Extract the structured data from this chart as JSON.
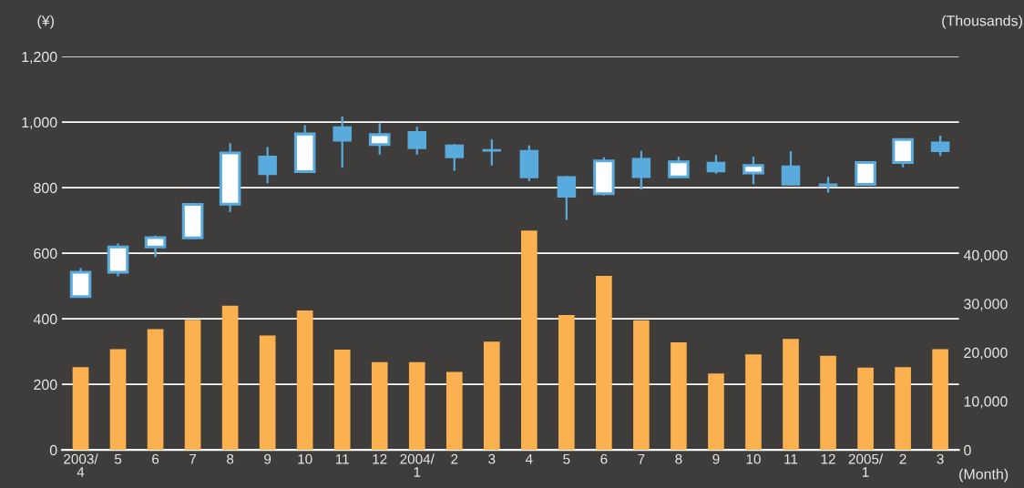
{
  "chart_data": {
    "type": "candlestick",
    "categories": [
      "2003/\n4",
      "5",
      "6",
      "7",
      "8",
      "9",
      "10",
      "11",
      "12",
      "2004/\n1",
      "2",
      "3",
      "4",
      "5",
      "6",
      "7",
      "8",
      "9",
      "10",
      "11",
      "12",
      "2005/\n1",
      "2",
      "3"
    ],
    "ohlc": [
      [
        468,
        555,
        465,
        542
      ],
      [
        542,
        630,
        530,
        619
      ],
      [
        619,
        654,
        589,
        648
      ],
      [
        647,
        754,
        644,
        749
      ],
      [
        750,
        936,
        726,
        906
      ],
      [
        898,
        924,
        814,
        839
      ],
      [
        849,
        991,
        849,
        964
      ],
      [
        987,
        1017,
        861,
        941
      ],
      [
        932,
        997,
        901,
        962
      ],
      [
        973,
        986,
        901,
        918
      ],
      [
        932,
        934,
        852,
        890
      ],
      [
        914,
        947,
        868,
        912
      ],
      [
        915,
        930,
        820,
        829
      ],
      [
        835,
        836,
        702,
        770
      ],
      [
        782,
        893,
        776,
        882
      ],
      [
        891,
        912,
        794,
        830
      ],
      [
        833,
        894,
        833,
        879
      ],
      [
        879,
        900,
        843,
        847
      ],
      [
        845,
        894,
        811,
        868
      ],
      [
        868,
        911,
        807,
        807
      ],
      [
        813,
        833,
        785,
        804
      ],
      [
        810,
        879,
        807,
        877
      ],
      [
        877,
        949,
        862,
        947
      ],
      [
        941,
        959,
        897,
        909
      ]
    ],
    "color": "#5aabdd",
    "series": [
      {
        "type": "bar",
        "axis": "y2",
        "color": "#fcb150",
        "values": [
          17000,
          20700,
          24800,
          26700,
          29600,
          23500,
          28600,
          20600,
          18000,
          18000,
          16000,
          22200,
          45000,
          27700,
          35700,
          26600,
          22100,
          15700,
          19600,
          22800,
          19300,
          16900,
          17000,
          20700
        ]
      }
    ],
    "ylabel": "(¥)",
    "y2label": "(Thousands)",
    "xlabel": "(Month)",
    "ylim": [
      0,
      1200
    ],
    "yticks": [
      0,
      200,
      400,
      600,
      800,
      {
        "value": 1000,
        "label": "1,000"
      },
      {
        "value": 1200,
        "label": "1,200"
      }
    ],
    "y2lim": [
      0,
      80700
    ],
    "y2ticks": [
      0,
      {
        "value": 10000,
        "label": "10,000"
      },
      {
        "value": 20000,
        "label": "20,000"
      },
      {
        "value": 30000,
        "label": "30,000"
      },
      {
        "value": 40000,
        "label": "40,000"
      }
    ],
    "grid": "y"
  }
}
